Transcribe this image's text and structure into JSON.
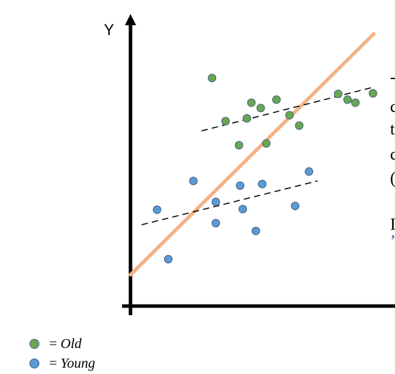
{
  "chart_data": {
    "type": "scatter",
    "ylabel": "Y",
    "colors": {
      "old": "#6aa84f",
      "young": "#5b9bd5",
      "trend": "#f4b183",
      "axis": "#000000"
    },
    "series": [
      {
        "name": "Old",
        "points": [
          [
            2.18,
            7.29
          ],
          [
            2.54,
            5.91
          ],
          [
            2.9,
            5.14
          ],
          [
            3.11,
            6.0
          ],
          [
            3.23,
            6.5
          ],
          [
            3.48,
            6.33
          ],
          [
            3.63,
            5.2
          ],
          [
            3.9,
            6.6
          ],
          [
            4.25,
            6.1
          ],
          [
            4.51,
            5.77
          ],
          [
            5.55,
            6.78
          ],
          [
            6.01,
            6.5
          ],
          [
            5.8,
            6.6
          ],
          [
            6.48,
            6.8
          ]
        ]
      },
      {
        "name": "Young",
        "points": [
          [
            0.71,
            3.08
          ],
          [
            1.01,
            1.5
          ],
          [
            1.68,
            4.0
          ],
          [
            2.28,
            3.33
          ],
          [
            2.28,
            2.65
          ],
          [
            2.93,
            3.85
          ],
          [
            3.0,
            3.1
          ],
          [
            3.52,
            3.9
          ],
          [
            3.35,
            2.4
          ],
          [
            4.4,
            3.2
          ],
          [
            4.77,
            4.3
          ]
        ]
      }
    ],
    "trend_overall": [
      [
        0.0,
        1.0
      ],
      [
        6.5,
        8.7
      ]
    ],
    "trend_old": [
      [
        1.9,
        5.6
      ],
      [
        6.5,
        7.0
      ]
    ],
    "trend_young": [
      [
        0.3,
        2.6
      ],
      [
        5.0,
        4.0
      ]
    ],
    "xlim": [
      0,
      7.2
    ],
    "ylim": [
      0,
      9
    ]
  },
  "legend": {
    "equals": "=",
    "old_label": "Old",
    "young_label": "Young"
  },
  "cropped_text": {
    "line1": "-",
    "line2": "c",
    "line3": "t",
    "line4": "c",
    "line5": "(",
    "line6": "I",
    "line7": "’"
  }
}
